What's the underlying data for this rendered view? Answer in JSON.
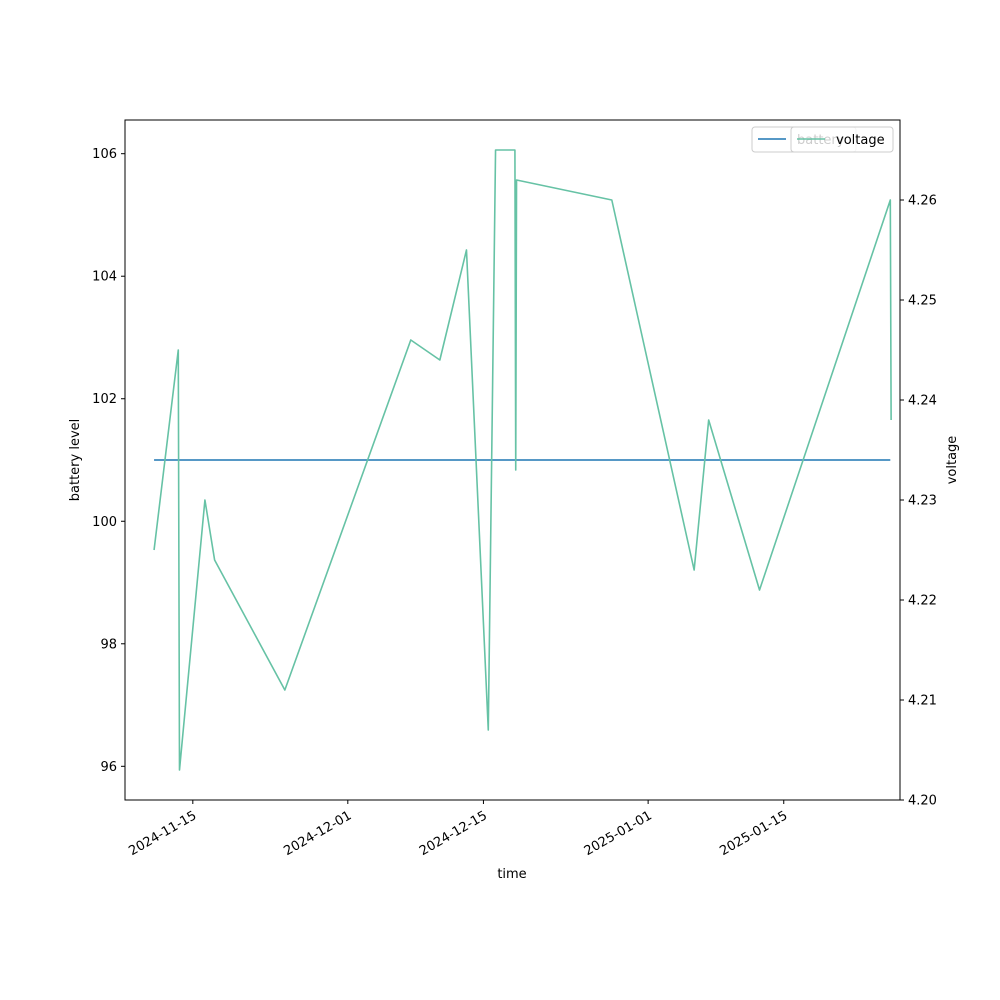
{
  "chart_data": {
    "type": "line",
    "xlabel": "time",
    "ylabel_left": "battery level",
    "ylabel_right": "voltage",
    "x_range": [
      "2024-11-08",
      "2025-01-27"
    ],
    "x_ticks": [
      "2024-11-15",
      "2024-12-01",
      "2024-12-15",
      "2025-01-01",
      "2025-01-15"
    ],
    "ylim_left": [
      95.45,
      106.55
    ],
    "yticks_left": [
      96,
      98,
      100,
      102,
      104,
      106
    ],
    "ylim_right": [
      4.2,
      4.268
    ],
    "yticks_right": [
      4.2,
      4.21,
      4.22,
      4.23,
      4.24,
      4.25,
      4.26
    ],
    "grid": false,
    "legend_placement": "top-right",
    "series": [
      {
        "name": "battery",
        "axis": "left",
        "color": "#1f77b4",
        "points": [
          [
            "2024-11-11",
            101
          ],
          [
            "2025-01-26",
            101
          ]
        ]
      },
      {
        "name": "voltage",
        "axis": "right",
        "color": "#66c2a5",
        "points": [
          [
            "2024-11-11",
            4.225
          ],
          [
            "2024-11-13 12:00",
            4.245
          ],
          [
            "2024-11-13 15:00",
            4.203
          ],
          [
            "2024-11-16 06:00",
            4.23
          ],
          [
            "2024-11-17 06:00",
            4.224
          ],
          [
            "2024-11-24 12:00",
            4.211
          ],
          [
            "2024-12-07 12:00",
            4.246
          ],
          [
            "2024-12-10 12:00",
            4.244
          ],
          [
            "2024-12-13 06:00",
            4.255
          ],
          [
            "2024-12-15 12:00",
            4.207
          ],
          [
            "2024-12-16 06:00",
            4.265
          ],
          [
            "2024-12-18 06:00",
            4.265
          ],
          [
            "2024-12-18 08:00",
            4.233
          ],
          [
            "2024-12-18 10:00",
            4.262
          ],
          [
            "2024-12-28 06:00",
            4.26
          ],
          [
            "2025-01-05 18:00",
            4.223
          ],
          [
            "2025-01-07 06:00",
            4.238
          ],
          [
            "2025-01-12 12:00",
            4.221
          ],
          [
            "2025-01-26 00:00",
            4.26
          ],
          [
            "2025-01-26 02:00",
            4.238
          ]
        ]
      }
    ]
  }
}
